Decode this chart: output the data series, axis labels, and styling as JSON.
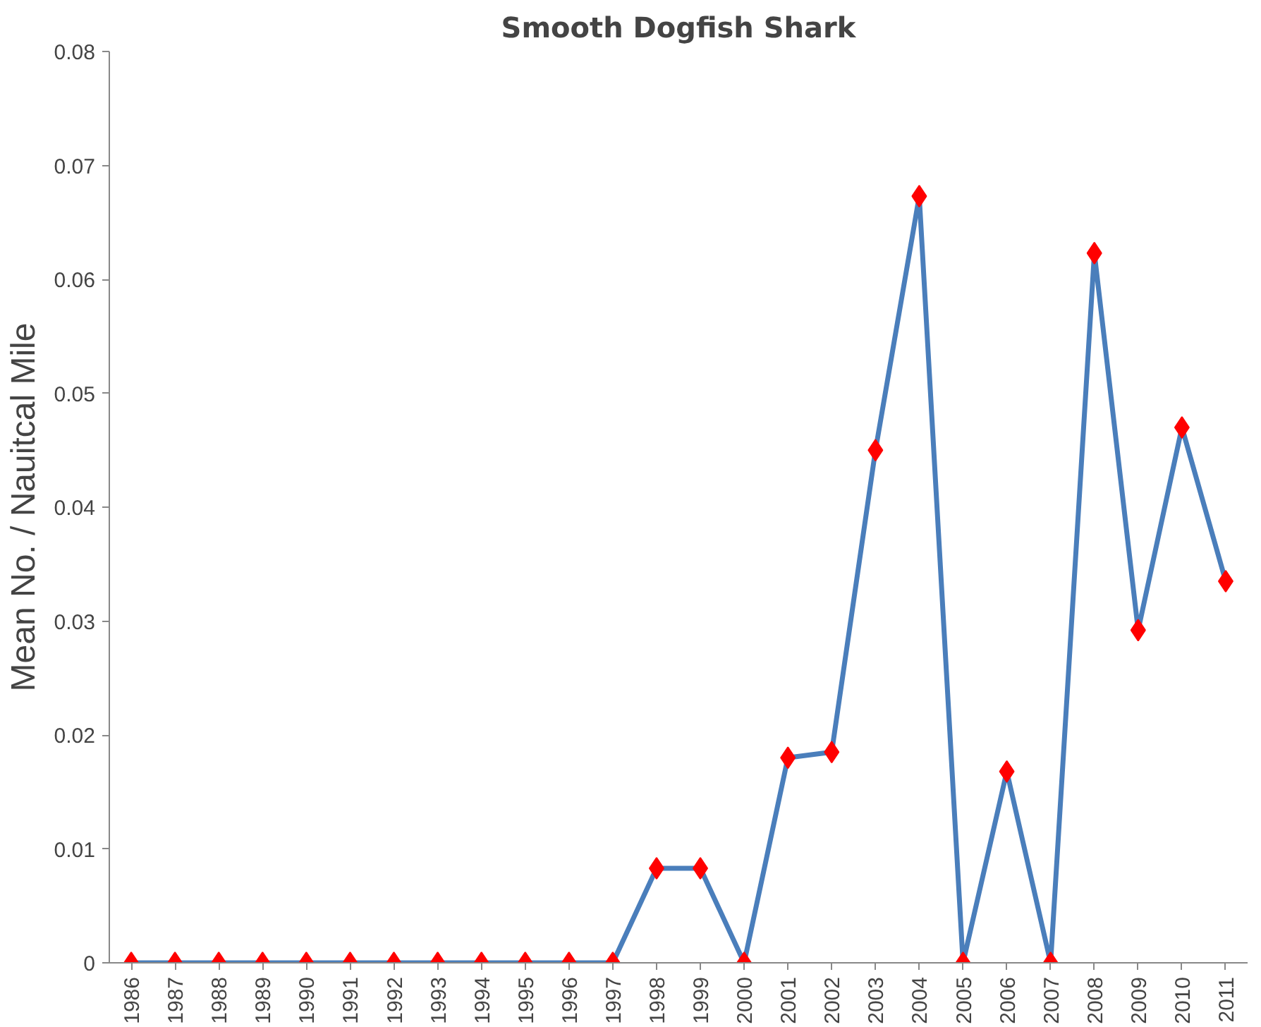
{
  "chart_data": {
    "type": "line",
    "title": "Smooth Dogfish Shark",
    "ylabel": "Mean No. / Nauitcal Mile",
    "categories": [
      "1986",
      "1987",
      "1988",
      "1989",
      "1990",
      "1991",
      "1992",
      "1993",
      "1994",
      "1995",
      "1996",
      "1997",
      "1998",
      "1999",
      "2000",
      "2001",
      "2002",
      "2003",
      "2004",
      "2005",
      "2006",
      "2007",
      "2008",
      "2009",
      "2010",
      "2011"
    ],
    "series": [
      {
        "color": "#4a7ebb",
        "colors": [
          "#ff0000",
          "#ff0000",
          "#ff0000",
          "#ff0000",
          "#ff0000",
          "#ff0000",
          "#ff0000",
          "#ff0000",
          "#ff0000",
          "#ff0000",
          "#ff0000",
          "#ff0000",
          "#ff0000",
          "#ff0000",
          "#ff0000",
          "#ff0000",
          "#ff0000",
          "#ff0000",
          "#ff0000",
          "#ff0000",
          "#ff0000",
          "#ff0000",
          "#ff0000",
          "#ff0000",
          "#ff0000",
          "#ff0000"
        ],
        "values": [
          0,
          0,
          0,
          0,
          0,
          0,
          0,
          0,
          0,
          0,
          0,
          0,
          0.0083,
          0.0083,
          0,
          0.018,
          0.0185,
          0.045,
          0.0673,
          0,
          0.0168,
          0,
          0.0623,
          0.0292,
          0.047,
          0.0335
        ]
      }
    ],
    "ylim": [
      0,
      0.08
    ],
    "yticks": [
      {
        "value": 0,
        "label": "0"
      },
      0.01,
      0.02,
      0.03,
      0.04,
      0.05,
      0.06,
      0.07,
      0.08
    ],
    "marker": "diamond",
    "line_style": "solid",
    "grid": false
  }
}
